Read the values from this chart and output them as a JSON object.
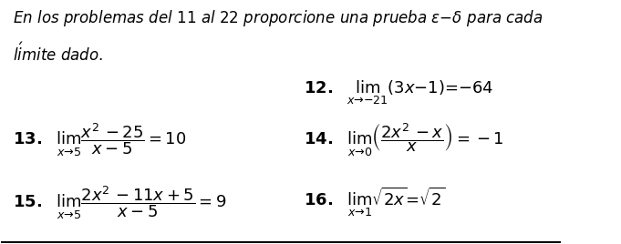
{
  "bg_color": "#ffffff",
  "border_color": "#000000",
  "intro_text": "En los problemas del 11 al 22 proporcione una prueba $\\varepsilon$–$\\delta$ para cada\nlímite dado.",
  "problems": [
    {
      "number": "12.",
      "math": "\\lim_{x\\to -21}(3x-1) = -64",
      "col": 0.54,
      "row": 0.38
    },
    {
      "number": "13.",
      "math": "\\lim_{x\\to 5}\\dfrac{x^2-25}{x-5} = 10",
      "col": 0.03,
      "row": 0.6
    },
    {
      "number": "14.",
      "math": "\\lim_{x\\to 0}\\left(\\dfrac{2x^2-x}{x}\\right) = -1",
      "col": 0.54,
      "row": 0.6
    },
    {
      "number": "15.",
      "math": "\\lim_{x\\to 5}\\dfrac{2x^2-11x+5}{x-5} = 9",
      "col": 0.03,
      "row": 0.84
    },
    {
      "number": "16.",
      "math": "\\lim_{x\\to 1}\\sqrt{2x} = \\sqrt{2}",
      "col": 0.54,
      "row": 0.84
    }
  ],
  "figsize": [
    6.81,
    2.68
  ],
  "dpi": 100,
  "font_size_intro": 12,
  "font_size_problem": 13
}
